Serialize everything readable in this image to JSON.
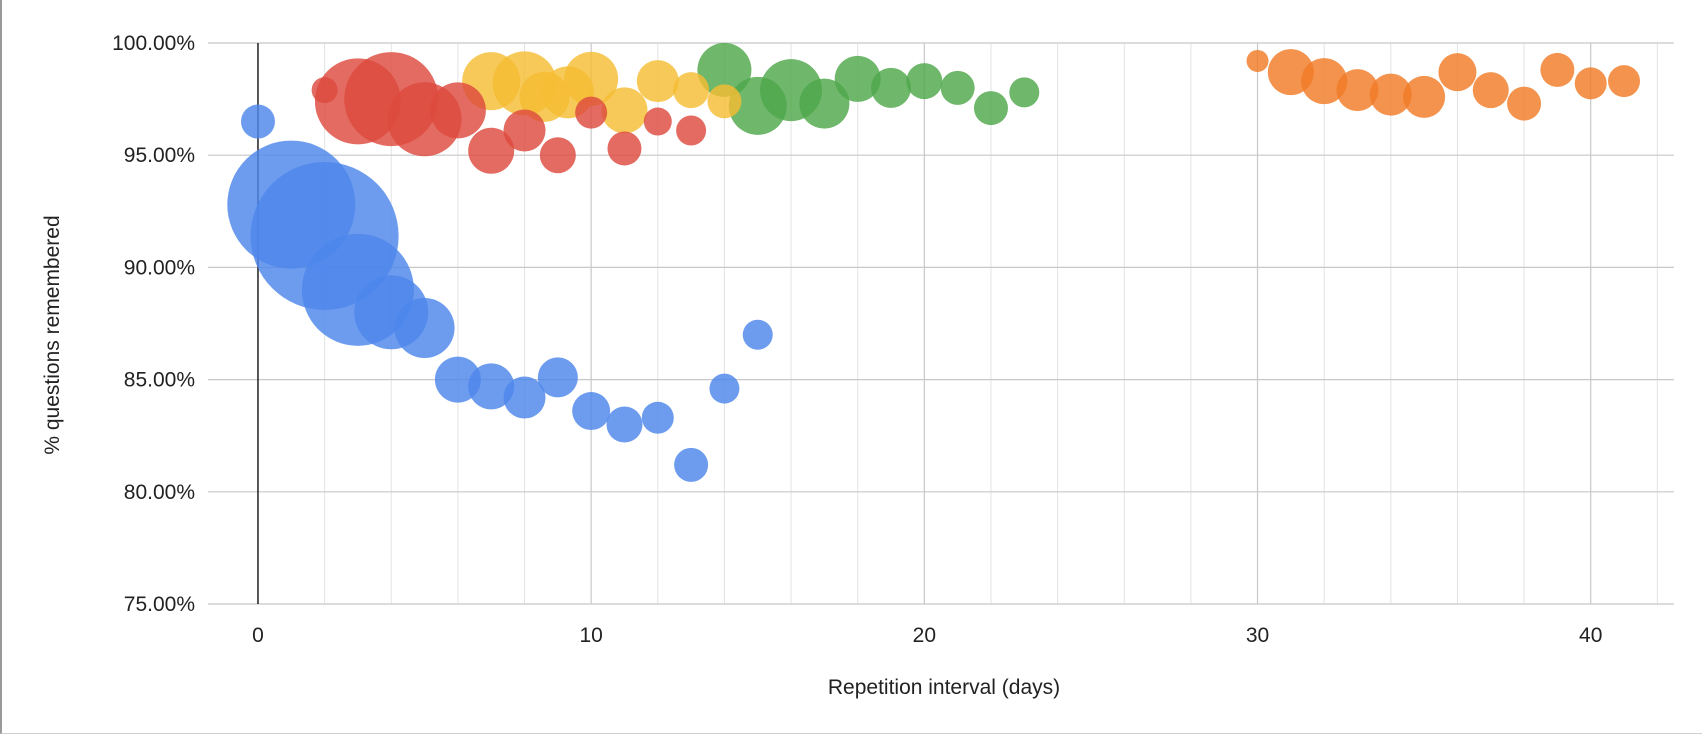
{
  "chart_data": {
    "type": "scatter",
    "title": "",
    "xlabel": "Repetition interval (days)",
    "ylabel": "% questions remembered",
    "xlim": [
      -1.5,
      42.5
    ],
    "ylim": [
      75,
      100
    ],
    "x_ticks": [
      0,
      10,
      20,
      30,
      40
    ],
    "x_tick_labels": [
      "0",
      "10",
      "20",
      "30",
      "40"
    ],
    "y_ticks": [
      75,
      80,
      85,
      90,
      95,
      100
    ],
    "y_tick_labels": [
      "75.00%",
      "80.00%",
      "85.00%",
      "90.00%",
      "95.00%",
      "100.00%"
    ],
    "grid": true,
    "legend": "none",
    "series": [
      {
        "color": "#4d86eb",
        "points": [
          {
            "x": 0,
            "y": 96.5,
            "size": 17
          },
          {
            "x": 1,
            "y": 92.8,
            "size": 64
          },
          {
            "x": 2,
            "y": 91.4,
            "size": 74
          },
          {
            "x": 3,
            "y": 89.0,
            "size": 56
          },
          {
            "x": 4,
            "y": 88.0,
            "size": 37
          },
          {
            "x": 5,
            "y": 87.3,
            "size": 30
          },
          {
            "x": 6,
            "y": 85.0,
            "size": 23
          },
          {
            "x": 7,
            "y": 84.7,
            "size": 23
          },
          {
            "x": 8,
            "y": 84.2,
            "size": 21
          },
          {
            "x": 9,
            "y": 85.1,
            "size": 20
          },
          {
            "x": 10,
            "y": 83.6,
            "size": 19
          },
          {
            "x": 11,
            "y": 83.0,
            "size": 18
          },
          {
            "x": 12,
            "y": 83.3,
            "size": 16
          },
          {
            "x": 13,
            "y": 81.2,
            "size": 17
          },
          {
            "x": 14,
            "y": 84.6,
            "size": 15
          },
          {
            "x": 15,
            "y": 87.0,
            "size": 15
          }
        ]
      },
      {
        "color": "#dd4b3e",
        "points": [
          {
            "x": 2,
            "y": 97.9,
            "size": 13
          },
          {
            "x": 3,
            "y": 97.4,
            "size": 43
          },
          {
            "x": 4,
            "y": 97.5,
            "size": 47
          },
          {
            "x": 5,
            "y": 96.6,
            "size": 37
          },
          {
            "x": 6,
            "y": 97.0,
            "size": 28
          },
          {
            "x": 7,
            "y": 95.2,
            "size": 23
          },
          {
            "x": 8,
            "y": 96.1,
            "size": 21
          },
          {
            "x": 9,
            "y": 95.0,
            "size": 18
          },
          {
            "x": 10,
            "y": 96.9,
            "size": 16
          },
          {
            "x": 11,
            "y": 95.3,
            "size": 17
          },
          {
            "x": 12,
            "y": 96.5,
            "size": 14
          },
          {
            "x": 13,
            "y": 96.1,
            "size": 15
          }
        ]
      },
      {
        "color": "#f5bd33",
        "points": [
          {
            "x": 7,
            "y": 98.3,
            "size": 29
          },
          {
            "x": 8,
            "y": 98.2,
            "size": 32
          },
          {
            "x": 8.6,
            "y": 97.6,
            "size": 25
          },
          {
            "x": 9.3,
            "y": 97.8,
            "size": 26
          },
          {
            "x": 10,
            "y": 98.4,
            "size": 27
          },
          {
            "x": 11,
            "y": 97.0,
            "size": 23
          },
          {
            "x": 12,
            "y": 98.3,
            "size": 21
          },
          {
            "x": 13,
            "y": 97.9,
            "size": 18
          },
          {
            "x": 14,
            "y": 97.4,
            "size": 17
          }
        ]
      },
      {
        "color": "#4ea74a",
        "points": [
          {
            "x": 14,
            "y": 98.8,
            "size": 27
          },
          {
            "x": 15,
            "y": 97.2,
            "size": 29
          },
          {
            "x": 16,
            "y": 97.9,
            "size": 31
          },
          {
            "x": 17,
            "y": 97.3,
            "size": 25
          },
          {
            "x": 18,
            "y": 98.4,
            "size": 23
          },
          {
            "x": 19,
            "y": 98.0,
            "size": 20
          },
          {
            "x": 20,
            "y": 98.3,
            "size": 18
          },
          {
            "x": 21,
            "y": 98.0,
            "size": 17
          },
          {
            "x": 22,
            "y": 97.1,
            "size": 17
          },
          {
            "x": 23,
            "y": 97.8,
            "size": 15
          }
        ]
      },
      {
        "color": "#f07b26",
        "points": [
          {
            "x": 30,
            "y": 99.2,
            "size": 11
          },
          {
            "x": 31,
            "y": 98.7,
            "size": 23
          },
          {
            "x": 32,
            "y": 98.3,
            "size": 23
          },
          {
            "x": 33,
            "y": 97.9,
            "size": 21
          },
          {
            "x": 34,
            "y": 97.7,
            "size": 21
          },
          {
            "x": 35,
            "y": 97.6,
            "size": 21
          },
          {
            "x": 36,
            "y": 98.7,
            "size": 19
          },
          {
            "x": 37,
            "y": 97.9,
            "size": 18
          },
          {
            "x": 38,
            "y": 97.3,
            "size": 17
          },
          {
            "x": 39,
            "y": 98.8,
            "size": 17
          },
          {
            "x": 40,
            "y": 98.2,
            "size": 16
          },
          {
            "x": 41,
            "y": 98.3,
            "size": 16
          }
        ]
      }
    ]
  }
}
